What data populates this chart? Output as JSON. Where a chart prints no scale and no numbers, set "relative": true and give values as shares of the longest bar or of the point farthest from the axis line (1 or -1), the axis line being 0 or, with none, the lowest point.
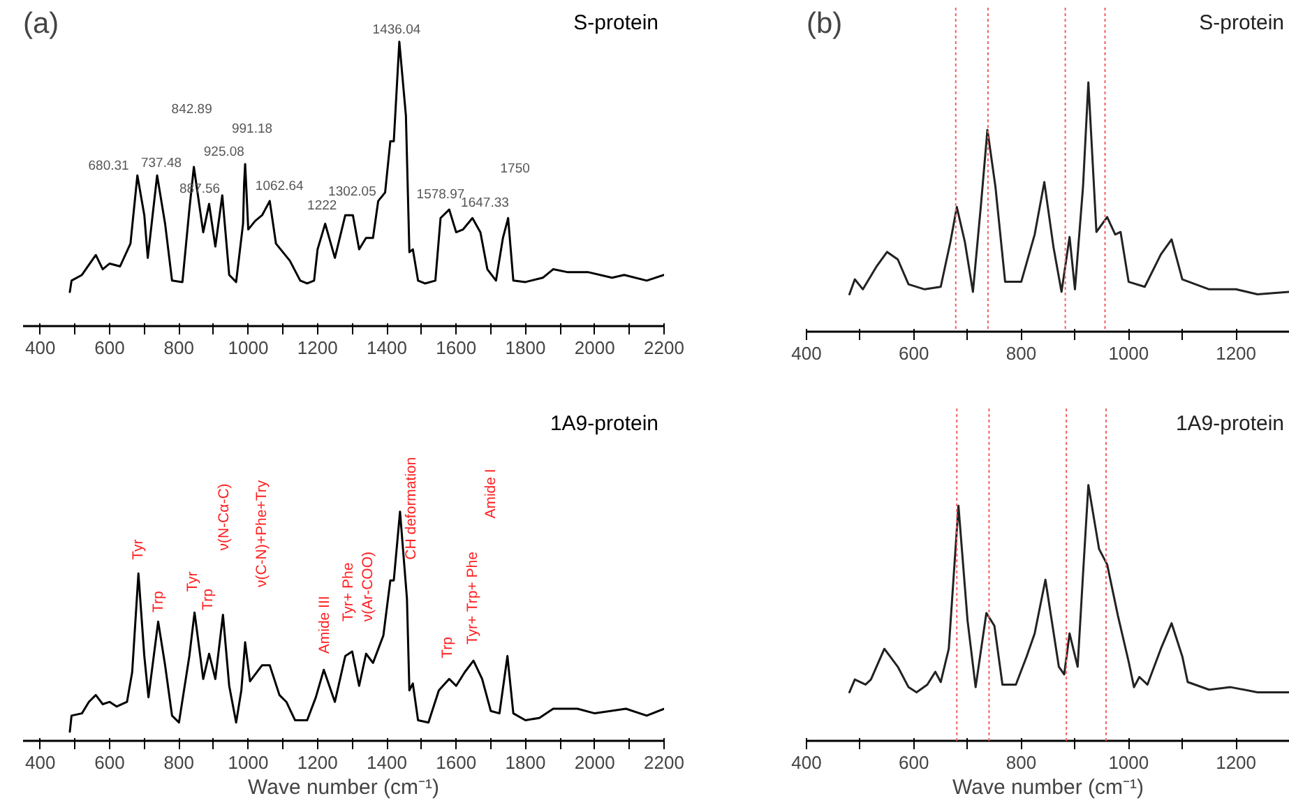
{
  "chart_data": [
    {
      "type": "line",
      "title": "(a)",
      "relative": true,
      "xlim": [
        350,
        2200
      ],
      "xticks": [
        400,
        {
          "value": 500,
          "label": null
        },
        600,
        {
          "value": 700,
          "label": null
        },
        800,
        {
          "value": 900,
          "label": null
        },
        1000,
        {
          "value": 1100,
          "label": null
        },
        1200,
        {
          "value": 1300,
          "label": null
        },
        1400,
        {
          "value": 1500,
          "label": null
        },
        1600,
        {
          "value": 1700,
          "label": null
        },
        1800,
        {
          "value": 1900,
          "label": null
        },
        2000,
        {
          "value": 2100,
          "label": null
        },
        2200
      ],
      "legend": "top right",
      "series": [
        {
          "name": "S-protein",
          "color": "#000000",
          "x": [
            485,
            490,
            520,
            560,
            580,
            600,
            630,
            660,
            680,
            700,
            710,
            737,
            760,
            780,
            810,
            830,
            843,
            870,
            887,
            905,
            925,
            945,
            965,
            985,
            988,
            991,
            995,
            1000,
            1020,
            1040,
            1062,
            1080,
            1120,
            1150,
            1170,
            1190,
            1200,
            1222,
            1250,
            1280,
            1302,
            1320,
            1340,
            1360,
            1375,
            1395,
            1410,
            1420,
            1436,
            1455,
            1465,
            1475,
            1490,
            1510,
            1540,
            1555,
            1580,
            1600,
            1620,
            1647,
            1670,
            1690,
            1715,
            1735,
            1750,
            1765,
            1800,
            1850,
            1880,
            1920,
            1980,
            2050,
            2085,
            2150,
            2200
          ],
          "values": [
            0.12,
            0.16,
            0.18,
            0.25,
            0.2,
            0.22,
            0.21,
            0.29,
            0.53,
            0.39,
            0.24,
            0.53,
            0.36,
            0.16,
            0.155,
            0.41,
            0.56,
            0.33,
            0.43,
            0.28,
            0.46,
            0.18,
            0.155,
            0.36,
            0.5,
            0.57,
            0.47,
            0.34,
            0.37,
            0.39,
            0.44,
            0.29,
            0.23,
            0.16,
            0.15,
            0.16,
            0.27,
            0.36,
            0.24,
            0.39,
            0.39,
            0.27,
            0.31,
            0.31,
            0.44,
            0.47,
            0.65,
            0.65,
            1.0,
            0.74,
            0.26,
            0.27,
            0.16,
            0.15,
            0.16,
            0.38,
            0.41,
            0.33,
            0.34,
            0.38,
            0.33,
            0.2,
            0.16,
            0.31,
            0.38,
            0.16,
            0.155,
            0.17,
            0.2,
            0.19,
            0.19,
            0.17,
            0.18,
            0.16,
            0.18
          ]
        }
      ],
      "annotations": [
        "680.31",
        "737.48",
        "842.89",
        "887.56",
        "925.08",
        "991.18",
        "1062.64",
        "1222",
        "1302.05",
        "1436.04",
        "1578.97",
        "1647.33",
        "1750"
      ]
    },
    {
      "type": "line",
      "relative": true,
      "xlim": [
        350,
        2200
      ],
      "xlabel": "Wave number (cm⁻¹)",
      "xticks": [
        400,
        {
          "value": 500,
          "label": null
        },
        600,
        {
          "value": 700,
          "label": null
        },
        800,
        {
          "value": 900,
          "label": null
        },
        1000,
        {
          "value": 1100,
          "label": null
        },
        1200,
        {
          "value": 1300,
          "label": null
        },
        1400,
        {
          "value": 1500,
          "label": null
        },
        1600,
        {
          "value": 1700,
          "label": null
        },
        1800,
        {
          "value": 1900,
          "label": null
        },
        2000,
        {
          "value": 2100,
          "label": null
        },
        2200
      ],
      "legend": "top right",
      "series": [
        {
          "name": "1A9-protein",
          "color": "#000000",
          "x": [
            485,
            490,
            520,
            540,
            560,
            580,
            600,
            620,
            650,
            665,
            683,
            700,
            712,
            740,
            760,
            780,
            800,
            830,
            845,
            870,
            887,
            905,
            927,
            945,
            965,
            980,
            991,
            1005,
            1040,
            1062,
            1090,
            1110,
            1135,
            1170,
            1195,
            1218,
            1250,
            1280,
            1300,
            1320,
            1340,
            1360,
            1390,
            1410,
            1420,
            1438,
            1458,
            1465,
            1475,
            1490,
            1520,
            1550,
            1580,
            1600,
            1625,
            1650,
            1675,
            1700,
            1725,
            1748,
            1765,
            1800,
            1840,
            1880,
            1950,
            2000,
            2090,
            2150,
            2200
          ],
          "values": [
            0.04,
            0.11,
            0.12,
            0.17,
            0.2,
            0.16,
            0.17,
            0.15,
            0.17,
            0.3,
            0.73,
            0.37,
            0.19,
            0.52,
            0.33,
            0.11,
            0.08,
            0.37,
            0.56,
            0.27,
            0.38,
            0.27,
            0.55,
            0.24,
            0.08,
            0.22,
            0.43,
            0.26,
            0.33,
            0.33,
            0.2,
            0.17,
            0.09,
            0.09,
            0.19,
            0.31,
            0.17,
            0.37,
            0.39,
            0.24,
            0.38,
            0.34,
            0.46,
            0.7,
            0.7,
            1.0,
            0.62,
            0.22,
            0.25,
            0.09,
            0.08,
            0.22,
            0.27,
            0.24,
            0.3,
            0.35,
            0.27,
            0.13,
            0.12,
            0.37,
            0.12,
            0.09,
            0.1,
            0.14,
            0.14,
            0.12,
            0.14,
            0.11,
            0.14
          ]
        }
      ],
      "annotations": [
        "Tyr",
        "Trp",
        "Tyr",
        "Trp",
        "ν(N-Cα-C)",
        "ν(C-N)+Phe+Try",
        "Amide III",
        "Tyr+ Phe",
        "ν(Ar-COO)",
        "CH deformation",
        "Trp",
        "Tyr+ Trp+ Phe",
        "Amide I"
      ]
    },
    {
      "type": "line",
      "title": "(b)",
      "relative": true,
      "xlim": [
        400,
        1300
      ],
      "xticks": [
        400,
        {
          "value": 500,
          "label": null
        },
        600,
        {
          "value": 700,
          "label": null
        },
        800,
        {
          "value": 900,
          "label": null
        },
        1000,
        {
          "value": 1100,
          "label": null
        },
        1200
      ],
      "legend": "top right",
      "series": [
        {
          "name": "S-protein",
          "color": "#222222",
          "x": [
            480,
            490,
            505,
            530,
            550,
            570,
            590,
            620,
            650,
            668,
            680,
            695,
            710,
            725,
            737,
            752,
            770,
            800,
            825,
            843,
            860,
            875,
            890,
            900,
            915,
            925,
            940,
            960,
            975,
            985,
            1000,
            1030,
            1060,
            1080,
            1100,
            1150,
            1200,
            1240,
            1300
          ],
          "values": [
            0.15,
            0.21,
            0.17,
            0.26,
            0.32,
            0.29,
            0.19,
            0.17,
            0.18,
            0.36,
            0.5,
            0.36,
            0.16,
            0.51,
            0.81,
            0.58,
            0.2,
            0.2,
            0.39,
            0.6,
            0.34,
            0.16,
            0.38,
            0.17,
            0.58,
            1.0,
            0.4,
            0.46,
            0.39,
            0.4,
            0.2,
            0.18,
            0.31,
            0.37,
            0.21,
            0.17,
            0.17,
            0.15,
            0.16
          ]
        }
      ],
      "ref_lines": [
        {
          "axis": "x",
          "value": 678,
          "color": "#f06060",
          "line_style": "dotted"
        },
        {
          "axis": "x",
          "value": 738,
          "color": "#f06060",
          "line_style": "dotted"
        },
        {
          "axis": "x",
          "value": 882,
          "color": "#f06060",
          "line_style": "dotted"
        },
        {
          "axis": "x",
          "value": 956,
          "color": "#f06060",
          "line_style": "dotted"
        }
      ]
    },
    {
      "type": "line",
      "relative": true,
      "xlim": [
        400,
        1300
      ],
      "xlabel": "Wave number (cm⁻¹)",
      "xticks": [
        400,
        {
          "value": 500,
          "label": null
        },
        600,
        {
          "value": 700,
          "label": null
        },
        800,
        {
          "value": 900,
          "label": null
        },
        1000,
        {
          "value": 1100,
          "label": null
        },
        1200
      ],
      "legend": "top right",
      "series": [
        {
          "name": "1A9-protein",
          "color": "#222222",
          "x": [
            480,
            490,
            510,
            520,
            545,
            570,
            590,
            605,
            625,
            640,
            650,
            665,
            683,
            700,
            715,
            735,
            750,
            765,
            790,
            810,
            825,
            845,
            870,
            880,
            890,
            905,
            915,
            925,
            945,
            960,
            980,
            1000,
            1010,
            1020,
            1035,
            1060,
            1080,
            1100,
            1110,
            1150,
            1190,
            1240,
            1300
          ],
          "values": [
            0.19,
            0.24,
            0.22,
            0.24,
            0.36,
            0.29,
            0.21,
            0.19,
            0.22,
            0.27,
            0.23,
            0.36,
            0.92,
            0.47,
            0.21,
            0.5,
            0.45,
            0.22,
            0.22,
            0.33,
            0.42,
            0.63,
            0.29,
            0.26,
            0.42,
            0.29,
            0.65,
            1.0,
            0.75,
            0.69,
            0.49,
            0.31,
            0.21,
            0.25,
            0.22,
            0.36,
            0.46,
            0.33,
            0.23,
            0.2,
            0.21,
            0.19,
            0.19
          ]
        }
      ],
      "ref_lines": [
        {
          "axis": "x",
          "value": 680,
          "color": "#f06060",
          "line_style": "dotted"
        },
        {
          "axis": "x",
          "value": 740,
          "color": "#f06060",
          "line_style": "dotted"
        },
        {
          "axis": "x",
          "value": 884,
          "color": "#f06060",
          "line_style": "dotted"
        },
        {
          "axis": "x",
          "value": 958,
          "color": "#f06060",
          "line_style": "dotted"
        }
      ]
    }
  ]
}
